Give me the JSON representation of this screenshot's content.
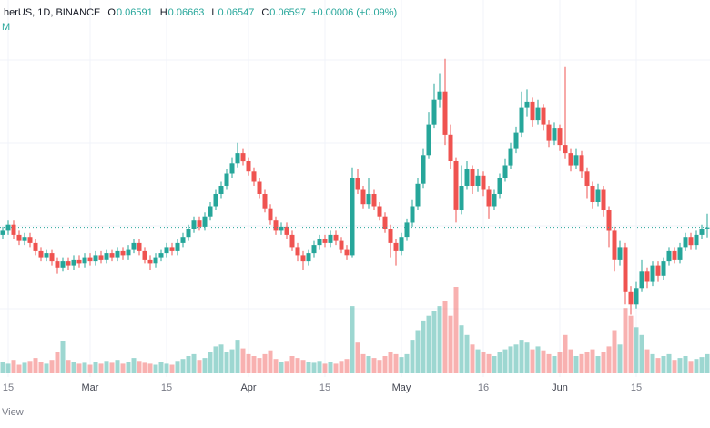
{
  "header": {
    "symbol_text": "herUS, 1D, BINANCE",
    "ohlc": {
      "o_label": "O",
      "o": "0.06591",
      "h_label": "H",
      "h": "0.06663",
      "l_label": "L",
      "l": "0.06547",
      "c_label": "C",
      "c": "0.06597",
      "change": "+0.00006 (+0.09%)"
    },
    "indicator_label": "M"
  },
  "watermark": {
    "text": "View"
  },
  "colors": {
    "up": "#26a69a",
    "down": "#ef5350",
    "vol_up": "rgba(38,166,154,0.45)",
    "vol_down": "rgba(239,83,80,0.45)",
    "grid": "#f0f3fa",
    "axis_text": "#787b86",
    "axis_text_month": "#434651",
    "price_line": "#26a69a",
    "text_dark": "#131722"
  },
  "chart_data": {
    "type": "candlestick",
    "title": "herUS, 1D, BINANCE",
    "interval": "1D",
    "current_price": 0.06597,
    "price_min": 0.0615,
    "price_max": 0.0745,
    "legend_values": {
      "open": 0.06591,
      "high": 0.06663,
      "low": 0.06547,
      "close": 0.06597,
      "change_abs": 6e-05,
      "change_pct": 0.09
    },
    "x_labels": [
      {
        "text": "15",
        "index": 1,
        "month": false
      },
      {
        "text": "Mar",
        "index": 16,
        "month": true
      },
      {
        "text": "15",
        "index": 30,
        "month": false
      },
      {
        "text": "Apr",
        "index": 45,
        "month": true
      },
      {
        "text": "15",
        "index": 59,
        "month": false
      },
      {
        "text": "May",
        "index": 73,
        "month": true
      },
      {
        "text": "16",
        "index": 88,
        "month": false
      },
      {
        "text": "Jun",
        "index": 102,
        "month": true
      },
      {
        "text": "15",
        "index": 116,
        "month": false
      }
    ],
    "candles_format": [
      "open",
      "high",
      "low",
      "close",
      "volume"
    ],
    "candles": [
      [
        0.0656,
        0.066,
        0.0654,
        0.0658,
        12
      ],
      [
        0.0658,
        0.0663,
        0.0656,
        0.0661,
        10
      ],
      [
        0.0661,
        0.0663,
        0.0654,
        0.0656,
        14
      ],
      [
        0.0656,
        0.0658,
        0.0651,
        0.0653,
        9
      ],
      [
        0.0653,
        0.0657,
        0.0651,
        0.0655,
        11
      ],
      [
        0.0655,
        0.0657,
        0.065,
        0.0652,
        13
      ],
      [
        0.0652,
        0.0654,
        0.0646,
        0.0648,
        16
      ],
      [
        0.0648,
        0.065,
        0.0643,
        0.0645,
        12
      ],
      [
        0.0645,
        0.0649,
        0.0643,
        0.0647,
        10
      ],
      [
        0.0647,
        0.0649,
        0.0641,
        0.0643,
        14
      ],
      [
        0.0643,
        0.0645,
        0.0637,
        0.064,
        22
      ],
      [
        0.064,
        0.0645,
        0.0638,
        0.0643,
        34
      ],
      [
        0.0643,
        0.0645,
        0.0639,
        0.0641,
        14
      ],
      [
        0.0641,
        0.0646,
        0.0639,
        0.0644,
        12
      ],
      [
        0.0644,
        0.0646,
        0.064,
        0.0642,
        10
      ],
      [
        0.0642,
        0.0647,
        0.064,
        0.0645,
        11
      ],
      [
        0.0645,
        0.0647,
        0.0641,
        0.0643,
        9
      ],
      [
        0.0643,
        0.0648,
        0.0641,
        0.0646,
        12
      ],
      [
        0.0646,
        0.0648,
        0.0642,
        0.0644,
        10
      ],
      [
        0.0644,
        0.0649,
        0.0642,
        0.0647,
        13
      ],
      [
        0.0647,
        0.0649,
        0.0643,
        0.0645,
        11
      ],
      [
        0.0645,
        0.065,
        0.0643,
        0.0648,
        14
      ],
      [
        0.0648,
        0.065,
        0.0644,
        0.0646,
        10
      ],
      [
        0.0646,
        0.0651,
        0.0644,
        0.0649,
        12
      ],
      [
        0.0649,
        0.0654,
        0.0647,
        0.0652,
        16
      ],
      [
        0.0652,
        0.0654,
        0.0646,
        0.0648,
        13
      ],
      [
        0.0648,
        0.065,
        0.0642,
        0.0644,
        11
      ],
      [
        0.0644,
        0.0646,
        0.0639,
        0.0642,
        10
      ],
      [
        0.0642,
        0.0647,
        0.064,
        0.0645,
        9
      ],
      [
        0.0645,
        0.0649,
        0.0643,
        0.0647,
        12
      ],
      [
        0.0647,
        0.0652,
        0.0645,
        0.065,
        10
      ],
      [
        0.065,
        0.0652,
        0.0646,
        0.0648,
        9
      ],
      [
        0.0648,
        0.0654,
        0.0646,
        0.0652,
        13
      ],
      [
        0.0652,
        0.0657,
        0.065,
        0.0655,
        15
      ],
      [
        0.0655,
        0.0661,
        0.0653,
        0.0659,
        18
      ],
      [
        0.0659,
        0.0665,
        0.0657,
        0.0663,
        20
      ],
      [
        0.0663,
        0.0665,
        0.0658,
        0.066,
        14
      ],
      [
        0.066,
        0.0667,
        0.0658,
        0.0665,
        16
      ],
      [
        0.0665,
        0.0672,
        0.0663,
        0.067,
        22
      ],
      [
        0.067,
        0.0678,
        0.0668,
        0.0676,
        28
      ],
      [
        0.0676,
        0.0682,
        0.0674,
        0.068,
        30
      ],
      [
        0.068,
        0.0688,
        0.0678,
        0.0686,
        22
      ],
      [
        0.0686,
        0.0694,
        0.0684,
        0.0691,
        25
      ],
      [
        0.0691,
        0.0701,
        0.0689,
        0.0696,
        35
      ],
      [
        0.0696,
        0.0698,
        0.069,
        0.0692,
        26
      ],
      [
        0.0692,
        0.0694,
        0.0685,
        0.0687,
        20
      ],
      [
        0.0687,
        0.0689,
        0.068,
        0.0682,
        18
      ],
      [
        0.0682,
        0.0684,
        0.0674,
        0.0676,
        16
      ],
      [
        0.0676,
        0.0678,
        0.0667,
        0.0669,
        20
      ],
      [
        0.0669,
        0.0671,
        0.0661,
        0.0663,
        24
      ],
      [
        0.0663,
        0.0665,
        0.0656,
        0.0658,
        15
      ],
      [
        0.0658,
        0.0662,
        0.0656,
        0.066,
        12
      ],
      [
        0.066,
        0.0662,
        0.0654,
        0.0656,
        13
      ],
      [
        0.0656,
        0.0658,
        0.0648,
        0.065,
        18
      ],
      [
        0.065,
        0.0652,
        0.0643,
        0.0646,
        16
      ],
      [
        0.0646,
        0.0648,
        0.0639,
        0.0643,
        14
      ],
      [
        0.0643,
        0.0649,
        0.0641,
        0.0647,
        12
      ],
      [
        0.0647,
        0.0653,
        0.0645,
        0.0651,
        11
      ],
      [
        0.0651,
        0.0656,
        0.0649,
        0.0654,
        13
      ],
      [
        0.0654,
        0.0656,
        0.065,
        0.0652,
        10
      ],
      [
        0.0652,
        0.0658,
        0.065,
        0.0656,
        12
      ],
      [
        0.0656,
        0.0658,
        0.0651,
        0.0653,
        10
      ],
      [
        0.0653,
        0.0655,
        0.0647,
        0.0649,
        13
      ],
      [
        0.0649,
        0.0651,
        0.0644,
        0.0646,
        15
      ],
      [
        0.0646,
        0.0689,
        0.0645,
        0.0684,
        70
      ],
      [
        0.0684,
        0.0688,
        0.0676,
        0.0678,
        32
      ],
      [
        0.0678,
        0.068,
        0.0669,
        0.0671,
        20
      ],
      [
        0.0671,
        0.0684,
        0.0669,
        0.0676,
        18
      ],
      [
        0.0676,
        0.0678,
        0.0668,
        0.067,
        16
      ],
      [
        0.067,
        0.0672,
        0.0663,
        0.0665,
        14
      ],
      [
        0.0665,
        0.0667,
        0.0657,
        0.0659,
        18
      ],
      [
        0.0659,
        0.0661,
        0.0645,
        0.0652,
        22
      ],
      [
        0.0652,
        0.0654,
        0.0641,
        0.0648,
        20
      ],
      [
        0.0648,
        0.0657,
        0.0646,
        0.0655,
        17
      ],
      [
        0.0655,
        0.0664,
        0.0653,
        0.0662,
        20
      ],
      [
        0.0662,
        0.0673,
        0.066,
        0.067,
        35
      ],
      [
        0.067,
        0.0684,
        0.0668,
        0.0681,
        45
      ],
      [
        0.0681,
        0.0698,
        0.0679,
        0.0695,
        55
      ],
      [
        0.0695,
        0.0716,
        0.0693,
        0.071,
        60
      ],
      [
        0.071,
        0.073,
        0.0708,
        0.0722,
        65
      ],
      [
        0.0722,
        0.0735,
        0.0718,
        0.0726,
        70
      ],
      [
        0.0726,
        0.0742,
        0.07,
        0.0705,
        75
      ],
      [
        0.0705,
        0.071,
        0.0688,
        0.0692,
        60
      ],
      [
        0.0692,
        0.0694,
        0.0662,
        0.0668,
        90
      ],
      [
        0.0668,
        0.069,
        0.0666,
        0.068,
        50
      ],
      [
        0.068,
        0.0692,
        0.0678,
        0.0688,
        40
      ],
      [
        0.0688,
        0.069,
        0.0676,
        0.068,
        30
      ],
      [
        0.068,
        0.0688,
        0.0677,
        0.0685,
        25
      ],
      [
        0.0685,
        0.0687,
        0.0675,
        0.0678,
        22
      ],
      [
        0.0678,
        0.068,
        0.0664,
        0.067,
        20
      ],
      [
        0.067,
        0.0678,
        0.0668,
        0.0676,
        18
      ],
      [
        0.0676,
        0.0686,
        0.0674,
        0.0684,
        22
      ],
      [
        0.0684,
        0.0693,
        0.0682,
        0.069,
        25
      ],
      [
        0.069,
        0.0701,
        0.0688,
        0.0698,
        28
      ],
      [
        0.0698,
        0.0709,
        0.0696,
        0.0706,
        30
      ],
      [
        0.0706,
        0.0726,
        0.0704,
        0.0718,
        35
      ],
      [
        0.0718,
        0.0727,
        0.0714,
        0.0721,
        32
      ],
      [
        0.0721,
        0.0723,
        0.0709,
        0.0712,
        25
      ],
      [
        0.0712,
        0.0722,
        0.071,
        0.0718,
        28
      ],
      [
        0.0718,
        0.072,
        0.0707,
        0.071,
        24
      ],
      [
        0.071,
        0.0712,
        0.0699,
        0.0702,
        20
      ],
      [
        0.0702,
        0.0711,
        0.07,
        0.0708,
        18
      ],
      [
        0.0708,
        0.071,
        0.0697,
        0.07,
        22
      ],
      [
        0.07,
        0.0738,
        0.0693,
        0.0696,
        40
      ],
      [
        0.0696,
        0.0698,
        0.0687,
        0.069,
        25
      ],
      [
        0.069,
        0.0698,
        0.0688,
        0.0695,
        18
      ],
      [
        0.0695,
        0.0697,
        0.0684,
        0.0687,
        20
      ],
      [
        0.0687,
        0.0689,
        0.0674,
        0.068,
        22
      ],
      [
        0.068,
        0.0682,
        0.0669,
        0.0672,
        25
      ],
      [
        0.0672,
        0.0681,
        0.067,
        0.0678,
        18
      ],
      [
        0.0678,
        0.068,
        0.0665,
        0.0668,
        22
      ],
      [
        0.0668,
        0.067,
        0.065,
        0.0658,
        28
      ],
      [
        0.0658,
        0.066,
        0.0638,
        0.0644,
        45
      ],
      [
        0.0644,
        0.0653,
        0.0641,
        0.065,
        30
      ],
      [
        0.065,
        0.0652,
        0.0622,
        0.0628,
        68
      ],
      [
        0.0628,
        0.0631,
        0.0617,
        0.0622,
        60
      ],
      [
        0.0622,
        0.0633,
        0.062,
        0.063,
        48
      ],
      [
        0.063,
        0.0644,
        0.0628,
        0.0638,
        40
      ],
      [
        0.0638,
        0.064,
        0.063,
        0.0633,
        25
      ],
      [
        0.0633,
        0.0643,
        0.0631,
        0.0641,
        20
      ],
      [
        0.0641,
        0.0643,
        0.0633,
        0.0636,
        16
      ],
      [
        0.0636,
        0.0645,
        0.0634,
        0.0643,
        18
      ],
      [
        0.0643,
        0.065,
        0.0641,
        0.0648,
        20
      ],
      [
        0.0648,
        0.065,
        0.0642,
        0.0644,
        14
      ],
      [
        0.0644,
        0.0652,
        0.0642,
        0.065,
        16
      ],
      [
        0.065,
        0.0657,
        0.0648,
        0.0655,
        18
      ],
      [
        0.0655,
        0.0657,
        0.0649,
        0.0651,
        13
      ],
      [
        0.0651,
        0.0658,
        0.0649,
        0.0656,
        15
      ],
      [
        0.0656,
        0.0661,
        0.0654,
        0.0659,
        17
      ],
      [
        0.06591,
        0.06663,
        0.06547,
        0.06597,
        20
      ]
    ]
  }
}
